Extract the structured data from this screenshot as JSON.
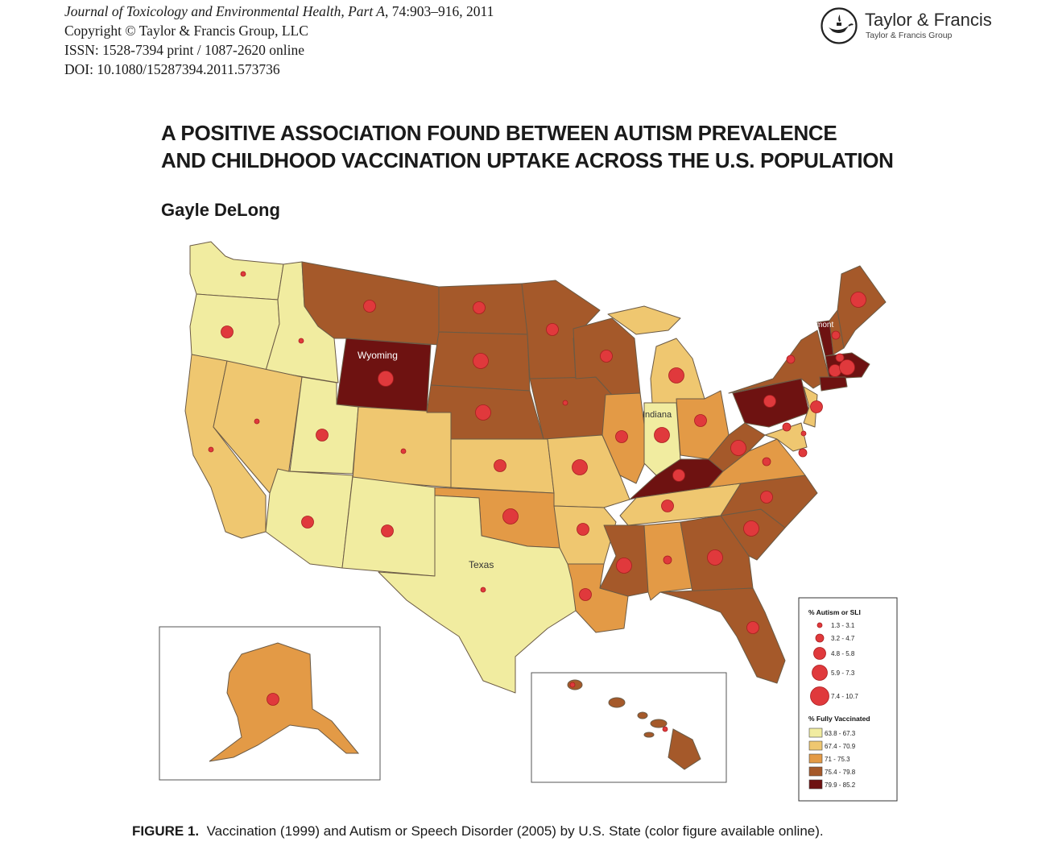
{
  "journal": {
    "name": "Journal of Toxicology and Environmental Health, Part A",
    "citation": ", 74:903–916, 2011",
    "copyright": "Copyright © Taylor & Francis Group, LLC",
    "issn": "ISSN: 1528-7394 print / 1087-2620 online",
    "doi": "DOI: 10.1080/15287394.2011.573736"
  },
  "publisher": {
    "name": "Taylor & Francis",
    "group": "Taylor & Francis Group",
    "logo_icon": "lamp-icon"
  },
  "title_lines": [
    "A POSITIVE ASSOCIATION FOUND BETWEEN AUTISM PREVALENCE",
    "AND CHILDHOOD VACCINATION UPTAKE ACROSS THE U.S. POPULATION"
  ],
  "author": "Gayle DeLong",
  "map": {
    "state_labels": {
      "wyoming": "Wyoming",
      "vermont": "Vermont",
      "indiana": "Indiana",
      "texas": "Texas"
    },
    "colors": {
      "v1": "#f1eca0",
      "v2": "#efc770",
      "v3": "#e39a46",
      "v4": "#a5592a",
      "v5": "#6e1211",
      "dot": "#e0393c",
      "dot_stroke": "#a81e20"
    },
    "legend": {
      "autism_title": "% Autism or SLI",
      "autism_classes": [
        "1.3 - 3.1",
        "3.2 - 4.7",
        "4.8 - 5.8",
        "5.9 - 7.3",
        "7.4 - 10.7"
      ],
      "vacc_title": "% Fully Vaccinated",
      "vacc_classes": [
        "63.8 - 67.3",
        "67.4 - 70.9",
        "71 - 75.3",
        "75.4 - 79.8",
        "79.9 - 85.2"
      ]
    }
  },
  "caption": {
    "label": "FIGURE 1.",
    "text": "Vaccination (1999) and Autism or Speech Disorder (2005) by U.S. State (color figure available online)."
  }
}
